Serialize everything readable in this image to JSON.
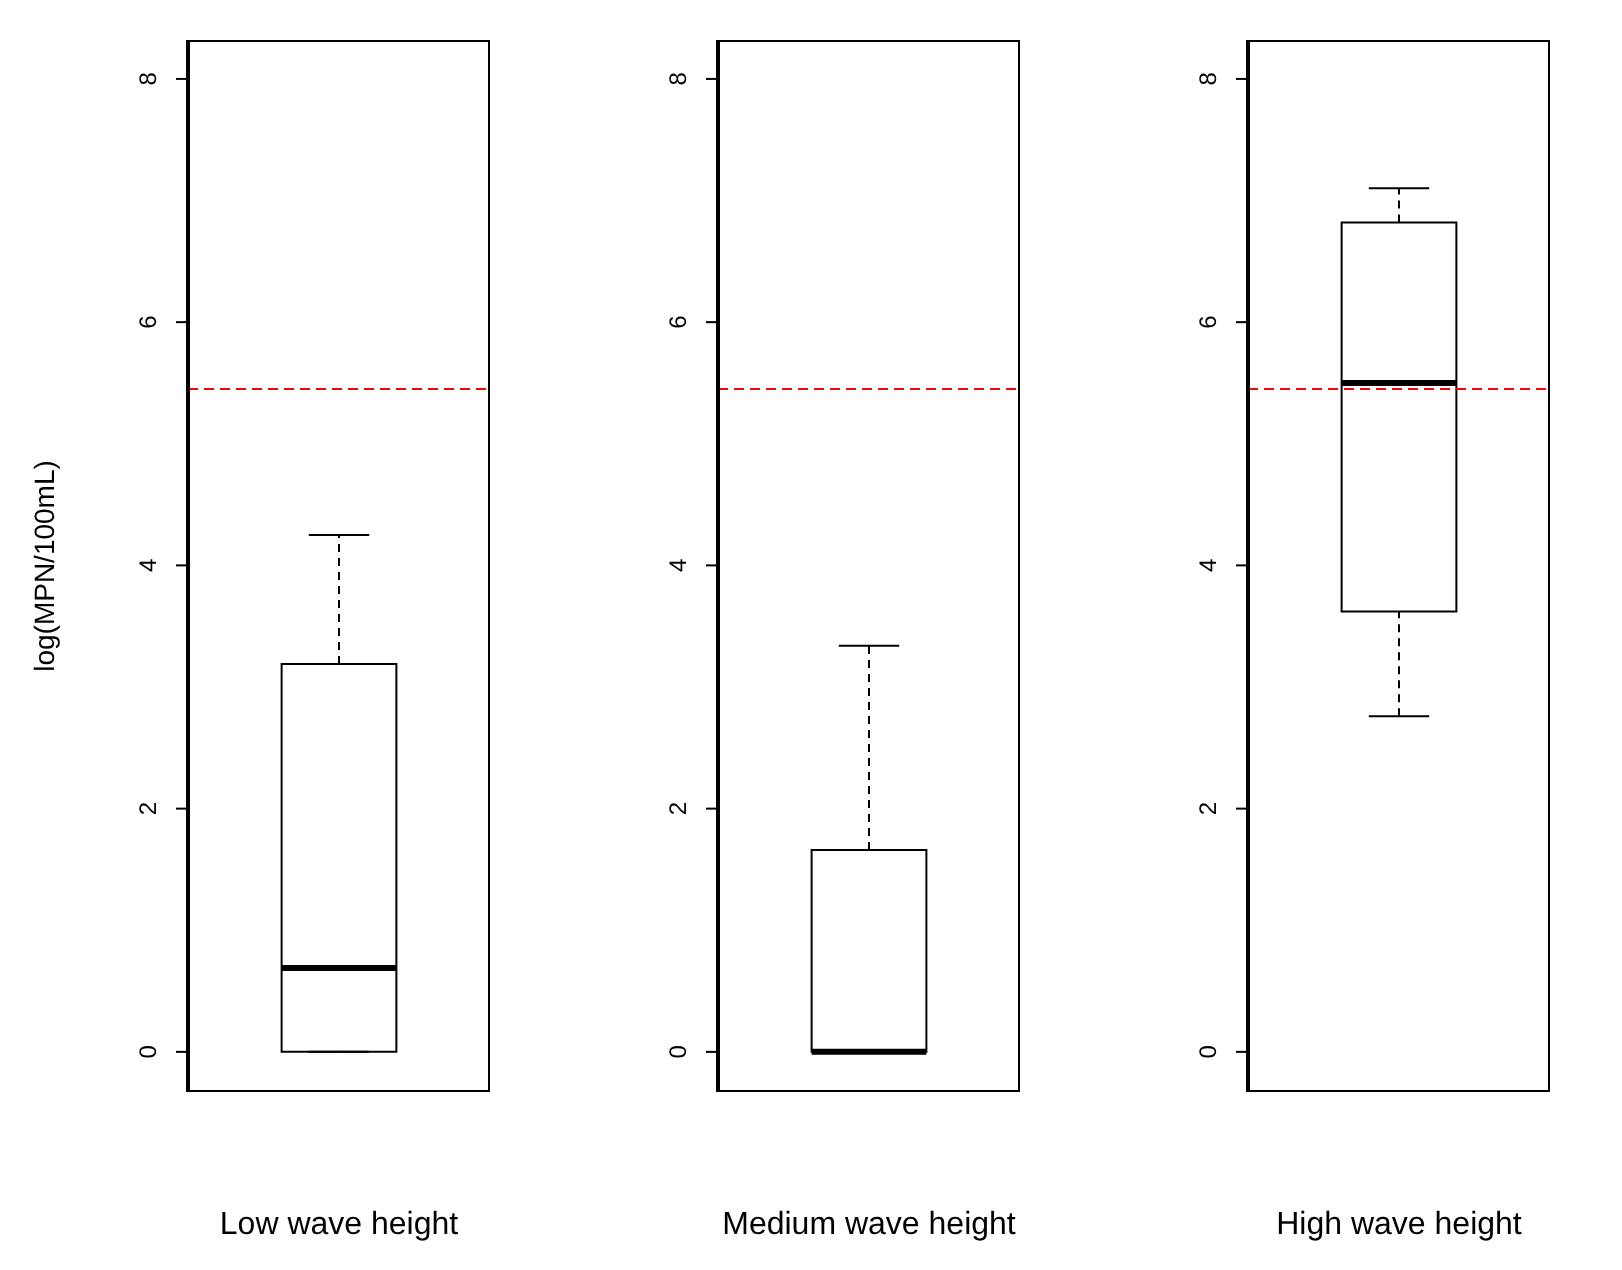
{
  "chart_data": [
    {
      "type": "box",
      "ylabel": "log(MPN/100mL)",
      "xlabel": "Low wave height",
      "categories": [
        null
      ],
      "boxes": [
        {
          "low": 0,
          "q1": 0,
          "median": 0.69,
          "q3": 3.19,
          "high": 4.25
        }
      ],
      "ylim": [
        -0.33,
        8.32
      ],
      "yticks": [
        0,
        2,
        4,
        6,
        8
      ],
      "ref_lines": [
        {
          "axis": "y",
          "value": 5.45,
          "color": "#ff0000",
          "line_style": "dashed"
        }
      ]
    },
    {
      "type": "box",
      "xlabel": "Medium wave height",
      "categories": [
        null
      ],
      "boxes": [
        {
          "low": 0,
          "q1": 0,
          "median": 0,
          "q3": 1.66,
          "high": 3.34
        }
      ],
      "ylim": [
        -0.33,
        8.32
      ],
      "yticks": [
        0,
        2,
        4,
        6,
        8
      ],
      "ref_lines": [
        {
          "axis": "y",
          "value": 5.45,
          "color": "#ff0000",
          "line_style": "dashed"
        }
      ]
    },
    {
      "type": "box",
      "xlabel": "High wave height",
      "categories": [
        null
      ],
      "boxes": [
        {
          "low": 2.76,
          "q1": 3.62,
          "median": 5.5,
          "q3": 6.82,
          "high": 7.1
        }
      ],
      "ylim": [
        -0.33,
        8.32
      ],
      "yticks": [
        0,
        2,
        4,
        6,
        8
      ],
      "ref_lines": [
        {
          "axis": "y",
          "value": 5.45,
          "color": "#ff0000",
          "line_style": "dashed"
        }
      ]
    }
  ]
}
